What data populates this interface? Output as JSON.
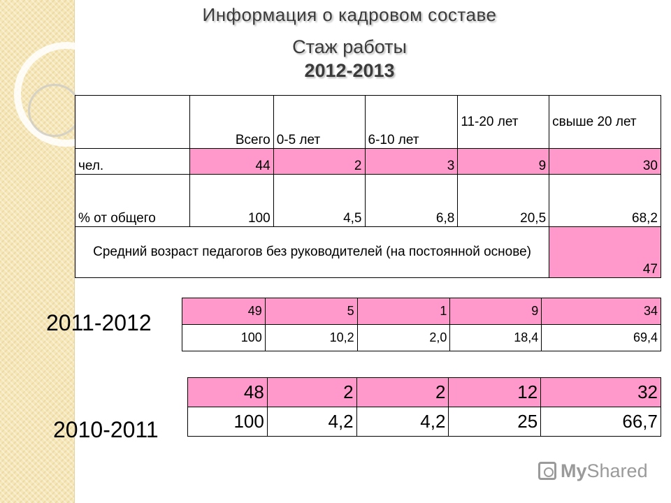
{
  "title": {
    "line1": "Информация о кадровом составе",
    "line2": "Стаж работы",
    "line3": "2012-2013"
  },
  "main_table": {
    "headers": [
      "",
      "Всего",
      "0-5 лет",
      "6-10 лет",
      "11-20 лет",
      "свыше 20 лет"
    ],
    "row_people": {
      "label": "чел.",
      "values": [
        "44",
        "2",
        "3",
        "9",
        "30"
      ]
    },
    "row_percent": {
      "label": "% от общего",
      "values": [
        "100",
        "4,5",
        "6,8",
        "20,5",
        "68,2"
      ]
    },
    "row_age": {
      "label": "Средний возраст педагогов без руководителей (на постоянной основе)",
      "value": "47"
    }
  },
  "year_2011_2012": {
    "label": "2011-2012",
    "row_people": [
      "49",
      "5",
      "1",
      "9",
      "34"
    ],
    "row_percent": [
      "100",
      "10,2",
      "2,0",
      "18,4",
      "69,4"
    ]
  },
  "year_2010_2011": {
    "label": "2010-2011",
    "row_people": [
      "48",
      "2",
      "2",
      "12",
      "32"
    ],
    "row_percent": [
      "100",
      "4,2",
      "4,2",
      "25",
      "66,7"
    ]
  },
  "logo": {
    "text_my": "My",
    "text_shared": "Shared"
  },
  "colors": {
    "pink": "#ff99cc",
    "sidebar": "#f6e7b8"
  }
}
